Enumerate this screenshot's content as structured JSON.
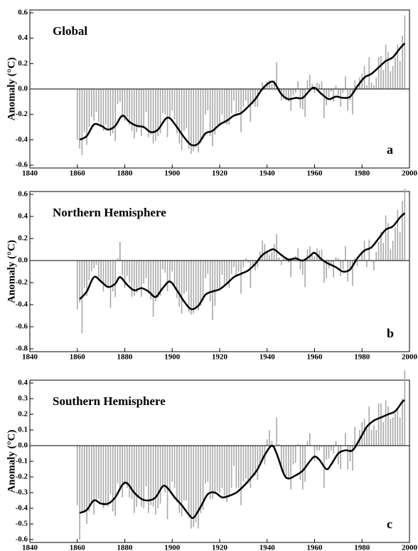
{
  "chart_data": [
    {
      "type": "bar_line",
      "title": "Global",
      "panel_label": "a",
      "ylabel": "Anomaly (°C)",
      "xlim": [
        1840,
        2000
      ],
      "xticks": [
        1840,
        1860,
        1880,
        1900,
        1920,
        1940,
        1960,
        1980,
        2000
      ],
      "ylim": [
        -0.6,
        0.6
      ],
      "yticks": [
        0.6,
        0.4,
        0.2,
        {
          "value": 0,
          "label": "0.0"
        },
        -0.2,
        -0.4,
        -0.6
      ],
      "color": "#a8a8a8",
      "line_color": "#000000",
      "x": [
        1860,
        1861,
        1862,
        1863,
        1864,
        1865,
        1866,
        1867,
        1868,
        1869,
        1870,
        1871,
        1872,
        1873,
        1874,
        1875,
        1876,
        1877,
        1878,
        1879,
        1880,
        1881,
        1882,
        1883,
        1884,
        1885,
        1886,
        1887,
        1888,
        1889,
        1890,
        1891,
        1892,
        1893,
        1894,
        1895,
        1896,
        1897,
        1898,
        1899,
        1900,
        1901,
        1902,
        1903,
        1904,
        1905,
        1906,
        1907,
        1908,
        1909,
        1910,
        1911,
        1912,
        1913,
        1914,
        1915,
        1916,
        1917,
        1918,
        1919,
        1920,
        1921,
        1922,
        1923,
        1924,
        1925,
        1926,
        1927,
        1928,
        1929,
        1930,
        1931,
        1932,
        1933,
        1934,
        1935,
        1936,
        1937,
        1938,
        1939,
        1940,
        1941,
        1942,
        1943,
        1944,
        1945,
        1946,
        1947,
        1948,
        1949,
        1950,
        1951,
        1952,
        1953,
        1954,
        1955,
        1956,
        1957,
        1958,
        1959,
        1960,
        1961,
        1962,
        1963,
        1964,
        1965,
        1966,
        1967,
        1968,
        1969,
        1970,
        1971,
        1972,
        1973,
        1974,
        1975,
        1976,
        1977,
        1978,
        1979,
        1980,
        1981,
        1982,
        1983,
        1984,
        1985,
        1986,
        1987,
        1988,
        1989,
        1990,
        1991,
        1992,
        1993,
        1994,
        1995,
        1996,
        1997,
        1998
      ],
      "values": [
        -0.4,
        -0.47,
        -0.52,
        -0.34,
        -0.44,
        -0.3,
        -0.22,
        -0.25,
        -0.18,
        -0.26,
        -0.3,
        -0.33,
        -0.28,
        -0.32,
        -0.37,
        -0.35,
        -0.41,
        -0.12,
        -0.1,
        -0.23,
        -0.25,
        -0.22,
        -0.28,
        -0.33,
        -0.39,
        -0.34,
        -0.3,
        -0.37,
        -0.31,
        -0.18,
        -0.38,
        -0.36,
        -0.43,
        -0.41,
        -0.37,
        -0.35,
        -0.19,
        -0.2,
        -0.38,
        -0.24,
        -0.17,
        -0.24,
        -0.35,
        -0.43,
        -0.48,
        -0.33,
        -0.31,
        -0.47,
        -0.51,
        -0.49,
        -0.46,
        -0.5,
        -0.42,
        -0.39,
        -0.2,
        -0.17,
        -0.37,
        -0.45,
        -0.36,
        -0.28,
        -0.29,
        -0.2,
        -0.27,
        -0.28,
        -0.28,
        -0.19,
        -0.09,
        -0.2,
        -0.18,
        -0.34,
        -0.14,
        -0.09,
        -0.13,
        -0.26,
        -0.12,
        -0.14,
        -0.14,
        -0.02,
        0.05,
        0.02,
        0.06,
        0.07,
        0.04,
        0.07,
        0.21,
        0.01,
        -0.09,
        -0.08,
        -0.09,
        -0.1,
        -0.17,
        -0.05,
        -0.03,
        0.06,
        -0.15,
        -0.16,
        -0.22,
        0.07,
        0.11,
        0.04,
        -0.03,
        0.05,
        0.04,
        0.06,
        -0.23,
        -0.13,
        -0.07,
        -0.02,
        -0.1,
        0.03,
        -0.05,
        -0.14,
        -0.03,
        0.1,
        -0.17,
        -0.09,
        -0.2,
        0.07,
        -0.01,
        0.09,
        0.12,
        0.18,
        0.03,
        0.25,
        0.05,
        0.03,
        0.09,
        0.25,
        0.26,
        0.15,
        0.35,
        0.29,
        0.14,
        0.18,
        0.25,
        0.35,
        0.22,
        0.42,
        0.58
      ],
      "smooth_x": [
        1861,
        1864,
        1867,
        1870,
        1873,
        1876,
        1879,
        1882,
        1885,
        1888,
        1891,
        1894,
        1897,
        1899,
        1902,
        1905,
        1908,
        1911,
        1914,
        1917,
        1920,
        1923,
        1926,
        1929,
        1932,
        1935,
        1938,
        1941,
        1943,
        1946,
        1949,
        1952,
        1955,
        1958,
        1960,
        1963,
        1966,
        1969,
        1972,
        1975,
        1978,
        1981,
        1984,
        1987,
        1990,
        1993,
        1996,
        1998
      ],
      "smooth_values": [
        -0.4,
        -0.37,
        -0.28,
        -0.29,
        -0.32,
        -0.29,
        -0.21,
        -0.26,
        -0.29,
        -0.3,
        -0.34,
        -0.32,
        -0.24,
        -0.23,
        -0.3,
        -0.38,
        -0.44,
        -0.43,
        -0.35,
        -0.33,
        -0.28,
        -0.25,
        -0.21,
        -0.19,
        -0.14,
        -0.08,
        0.0,
        0.05,
        0.05,
        -0.04,
        -0.08,
        -0.07,
        -0.07,
        -0.01,
        0.01,
        -0.04,
        -0.08,
        -0.06,
        -0.07,
        -0.06,
        0.02,
        0.09,
        0.12,
        0.17,
        0.22,
        0.25,
        0.32,
        0.36
      ]
    },
    {
      "type": "bar_line",
      "title": "Northern Hemisphere",
      "panel_label": "b",
      "ylabel": "Anomaly (°C)",
      "xlim": [
        1840,
        2000
      ],
      "xticks": [
        1840,
        1860,
        1880,
        1900,
        1920,
        1940,
        1960,
        1980,
        2000
      ],
      "ylim": [
        -0.8,
        0.6
      ],
      "yticks": [
        0.6,
        0.4,
        0.2,
        {
          "value": 0,
          "label": "0.0"
        },
        -0.2,
        -0.4,
        -0.6,
        -0.8
      ],
      "color": "#a8a8a8",
      "line_color": "#000000",
      "x": [
        1860,
        1861,
        1862,
        1863,
        1864,
        1865,
        1866,
        1867,
        1868,
        1869,
        1870,
        1871,
        1872,
        1873,
        1874,
        1875,
        1876,
        1877,
        1878,
        1879,
        1880,
        1881,
        1882,
        1883,
        1884,
        1885,
        1886,
        1887,
        1888,
        1889,
        1890,
        1891,
        1892,
        1893,
        1894,
        1895,
        1896,
        1897,
        1898,
        1899,
        1900,
        1901,
        1902,
        1903,
        1904,
        1905,
        1906,
        1907,
        1908,
        1909,
        1910,
        1911,
        1912,
        1913,
        1914,
        1915,
        1916,
        1917,
        1918,
        1919,
        1920,
        1921,
        1922,
        1923,
        1924,
        1925,
        1926,
        1927,
        1928,
        1929,
        1930,
        1931,
        1932,
        1933,
        1934,
        1935,
        1936,
        1937,
        1938,
        1939,
        1940,
        1941,
        1942,
        1943,
        1944,
        1945,
        1946,
        1947,
        1948,
        1949,
        1950,
        1951,
        1952,
        1953,
        1954,
        1955,
        1956,
        1957,
        1958,
        1959,
        1960,
        1961,
        1962,
        1963,
        1964,
        1965,
        1966,
        1967,
        1968,
        1969,
        1970,
        1971,
        1972,
        1973,
        1974,
        1975,
        1976,
        1977,
        1978,
        1979,
        1980,
        1981,
        1982,
        1983,
        1984,
        1985,
        1986,
        1987,
        1988,
        1989,
        1990,
        1991,
        1992,
        1993,
        1994,
        1995,
        1996,
        1997,
        1998
      ],
      "values": [
        -0.44,
        -0.38,
        -0.66,
        -0.25,
        -0.32,
        -0.18,
        -0.1,
        -0.07,
        -0.04,
        -0.15,
        -0.2,
        -0.28,
        -0.22,
        -0.24,
        -0.43,
        -0.28,
        -0.33,
        0.02,
        0.17,
        -0.13,
        -0.25,
        -0.14,
        -0.2,
        -0.33,
        -0.32,
        -0.29,
        -0.24,
        -0.33,
        -0.21,
        -0.16,
        -0.3,
        -0.35,
        -0.51,
        -0.37,
        -0.34,
        -0.32,
        -0.08,
        -0.11,
        -0.28,
        -0.2,
        -0.1,
        -0.22,
        -0.34,
        -0.42,
        -0.48,
        -0.3,
        -0.28,
        -0.47,
        -0.49,
        -0.48,
        -0.43,
        -0.45,
        -0.41,
        -0.36,
        -0.16,
        -0.12,
        -0.37,
        -0.54,
        -0.41,
        -0.27,
        -0.27,
        -0.13,
        -0.24,
        -0.2,
        -0.25,
        -0.12,
        -0.06,
        -0.13,
        -0.1,
        -0.3,
        -0.06,
        0.02,
        -0.02,
        -0.25,
        -0.04,
        -0.09,
        -0.06,
        0.08,
        0.18,
        0.15,
        0.07,
        0.05,
        0.08,
        0.15,
        0.24,
        0.03,
        -0.04,
        0.02,
        0.02,
        -0.02,
        -0.15,
        0.01,
        0.04,
        0.11,
        -0.08,
        -0.13,
        -0.24,
        0.1,
        0.13,
        0.07,
        0.04,
        0.11,
        0.09,
        0.1,
        -0.2,
        -0.16,
        -0.07,
        -0.03,
        -0.15,
        0.03,
        0.02,
        -0.14,
        -0.08,
        0.13,
        -0.19,
        -0.09,
        -0.23,
        0.02,
        -0.05,
        0.01,
        0.08,
        0.18,
        -0.06,
        0.19,
        -0.01,
        -0.09,
        0.08,
        0.17,
        0.26,
        0.16,
        0.41,
        0.34,
        0.1,
        0.18,
        0.3,
        0.46,
        0.26,
        0.54,
        0.65
      ],
      "smooth_x": [
        1861,
        1864,
        1867,
        1870,
        1873,
        1876,
        1878,
        1881,
        1884,
        1887,
        1890,
        1893,
        1896,
        1899,
        1902,
        1905,
        1908,
        1911,
        1914,
        1917,
        1920,
        1923,
        1926,
        1929,
        1932,
        1935,
        1938,
        1941,
        1943,
        1946,
        1949,
        1952,
        1955,
        1958,
        1960,
        1963,
        1966,
        1969,
        1972,
        1975,
        1978,
        1981,
        1984,
        1987,
        1990,
        1993,
        1996,
        1998
      ],
      "smooth_values": [
        -0.35,
        -0.28,
        -0.15,
        -0.19,
        -0.24,
        -0.21,
        -0.15,
        -0.22,
        -0.27,
        -0.25,
        -0.28,
        -0.33,
        -0.25,
        -0.19,
        -0.27,
        -0.37,
        -0.44,
        -0.41,
        -0.31,
        -0.28,
        -0.26,
        -0.21,
        -0.15,
        -0.12,
        -0.09,
        -0.03,
        0.05,
        0.09,
        0.1,
        0.05,
        0.01,
        0.02,
        0.0,
        0.04,
        0.07,
        0.01,
        -0.03,
        -0.06,
        -0.1,
        -0.08,
        0.02,
        0.09,
        0.12,
        0.2,
        0.28,
        0.31,
        0.39,
        0.43
      ]
    },
    {
      "type": "bar_line",
      "title": "Southern Hemisphere",
      "panel_label": "c",
      "ylabel": "Anomaly (°C)",
      "xlim": [
        1840,
        2000
      ],
      "xticks": [
        1840,
        1860,
        1880,
        1900,
        1920,
        1940,
        1960,
        1980,
        2000
      ],
      "ylim": [
        -0.6,
        0.4
      ],
      "yticks": [
        0.4,
        0.3,
        0.2,
        0.1,
        {
          "value": 0,
          "label": "0.0"
        },
        -0.1,
        -0.2,
        -0.3,
        -0.4,
        -0.5,
        -0.6
      ],
      "color": "#a8a8a8",
      "line_color": "#000000",
      "x": [
        1860,
        1861,
        1862,
        1863,
        1864,
        1865,
        1866,
        1867,
        1868,
        1869,
        1870,
        1871,
        1872,
        1873,
        1874,
        1875,
        1876,
        1877,
        1878,
        1879,
        1880,
        1881,
        1882,
        1883,
        1884,
        1885,
        1886,
        1887,
        1888,
        1889,
        1890,
        1891,
        1892,
        1893,
        1894,
        1895,
        1896,
        1897,
        1898,
        1899,
        1900,
        1901,
        1902,
        1903,
        1904,
        1905,
        1906,
        1907,
        1908,
        1909,
        1910,
        1911,
        1912,
        1913,
        1914,
        1915,
        1916,
        1917,
        1918,
        1919,
        1920,
        1921,
        1922,
        1923,
        1924,
        1925,
        1926,
        1927,
        1928,
        1929,
        1930,
        1931,
        1932,
        1933,
        1934,
        1935,
        1936,
        1937,
        1938,
        1939,
        1940,
        1941,
        1942,
        1943,
        1944,
        1945,
        1946,
        1947,
        1948,
        1949,
        1950,
        1951,
        1952,
        1953,
        1954,
        1955,
        1956,
        1957,
        1958,
        1959,
        1960,
        1961,
        1962,
        1963,
        1964,
        1965,
        1966,
        1967,
        1968,
        1969,
        1970,
        1971,
        1972,
        1973,
        1974,
        1975,
        1976,
        1977,
        1978,
        1979,
        1980,
        1981,
        1982,
        1983,
        1984,
        1985,
        1986,
        1987,
        1988,
        1989,
        1990,
        1991,
        1992,
        1993,
        1994,
        1995,
        1996,
        1997,
        1998
      ],
      "values": [
        -0.38,
        -0.6,
        -0.43,
        -0.43,
        -0.5,
        -0.42,
        -0.36,
        -0.44,
        -0.35,
        -0.34,
        -0.36,
        -0.4,
        -0.38,
        -0.39,
        -0.31,
        -0.42,
        -0.45,
        -0.24,
        -0.29,
        -0.33,
        -0.25,
        -0.27,
        -0.33,
        -0.34,
        -0.43,
        -0.39,
        -0.33,
        -0.39,
        -0.4,
        -0.26,
        -0.43,
        -0.38,
        -0.39,
        -0.44,
        -0.4,
        -0.37,
        -0.27,
        -0.3,
        -0.47,
        -0.29,
        -0.23,
        -0.27,
        -0.36,
        -0.43,
        -0.45,
        -0.35,
        -0.35,
        -0.46,
        -0.53,
        -0.52,
        -0.49,
        -0.53,
        -0.43,
        -0.41,
        -0.24,
        -0.23,
        -0.34,
        -0.34,
        -0.31,
        -0.29,
        -0.3,
        -0.27,
        -0.32,
        -0.36,
        -0.33,
        -0.27,
        -0.13,
        -0.27,
        -0.27,
        -0.38,
        -0.23,
        -0.21,
        -0.24,
        -0.27,
        -0.2,
        -0.19,
        -0.22,
        -0.12,
        -0.09,
        -0.12,
        0.04,
        0.1,
        0.03,
        -0.03,
        0.18,
        0.01,
        -0.15,
        -0.17,
        -0.2,
        -0.21,
        -0.28,
        -0.12,
        -0.11,
        0.01,
        -0.22,
        -0.28,
        -0.23,
        0.03,
        0.08,
        0.0,
        -0.1,
        -0.03,
        -0.03,
        -0.01,
        -0.27,
        -0.09,
        -0.08,
        -0.03,
        -0.05,
        0.03,
        -0.12,
        -0.15,
        0.0,
        0.08,
        -0.15,
        -0.1,
        -0.16,
        0.12,
        0.02,
        0.1,
        0.15,
        0.17,
        0.11,
        0.25,
        0.1,
        0.13,
        0.1,
        0.27,
        0.27,
        0.15,
        0.29,
        0.25,
        0.17,
        0.18,
        0.21,
        0.24,
        0.18,
        0.3,
        0.48
      ],
      "smooth_x": [
        1861,
        1864,
        1867,
        1870,
        1873,
        1876,
        1879,
        1881,
        1884,
        1887,
        1890,
        1893,
        1896,
        1898,
        1901,
        1904,
        1907,
        1909,
        1912,
        1915,
        1918,
        1921,
        1924,
        1927,
        1930,
        1933,
        1936,
        1939,
        1942,
        1944,
        1947,
        1949,
        1952,
        1955,
        1958,
        1960,
        1962,
        1965,
        1967,
        1970,
        1973,
        1976,
        1979,
        1982,
        1985,
        1988,
        1991,
        1994,
        1997,
        1998
      ],
      "smooth_values": [
        -0.43,
        -0.41,
        -0.35,
        -0.37,
        -0.37,
        -0.33,
        -0.25,
        -0.24,
        -0.3,
        -0.34,
        -0.35,
        -0.33,
        -0.26,
        -0.27,
        -0.33,
        -0.38,
        -0.44,
        -0.46,
        -0.39,
        -0.31,
        -0.3,
        -0.33,
        -0.32,
        -0.3,
        -0.26,
        -0.21,
        -0.15,
        -0.06,
        0.0,
        -0.05,
        -0.18,
        -0.21,
        -0.19,
        -0.16,
        -0.1,
        -0.07,
        -0.09,
        -0.15,
        -0.12,
        -0.05,
        -0.03,
        -0.03,
        0.04,
        0.12,
        0.16,
        0.18,
        0.2,
        0.22,
        0.28,
        0.29
      ]
    }
  ]
}
